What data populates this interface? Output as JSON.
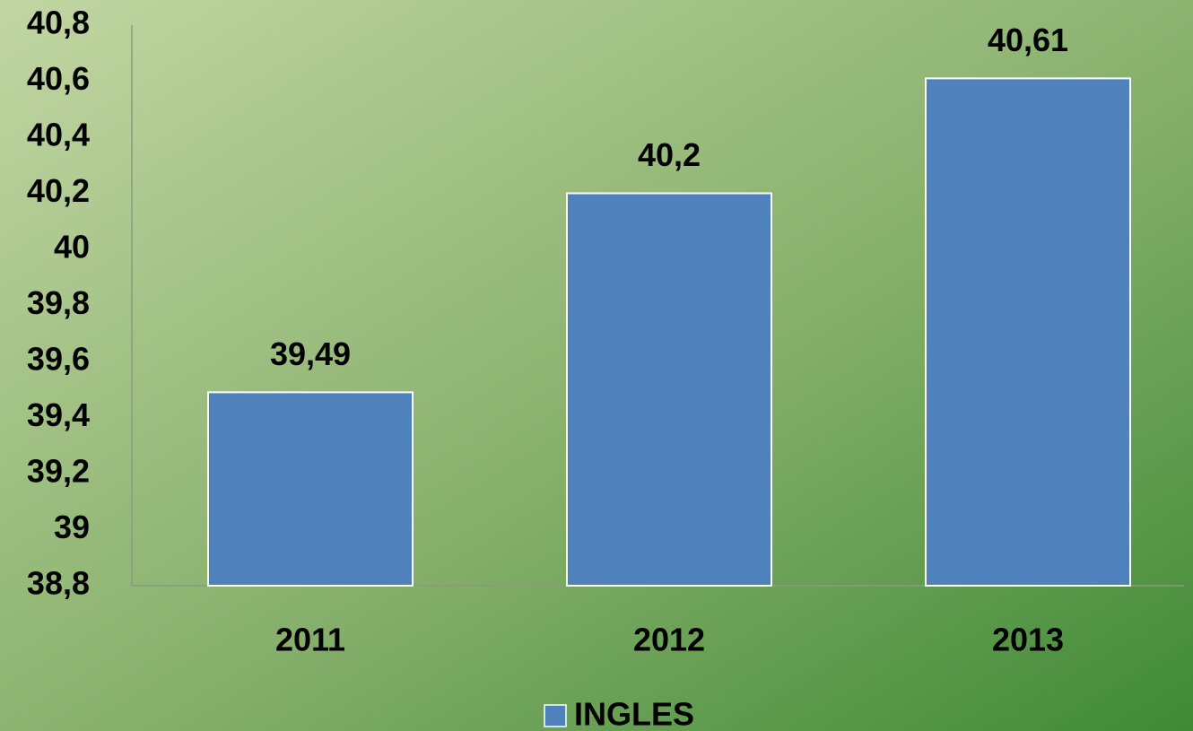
{
  "chart_data": {
    "type": "bar",
    "categories": [
      "2011",
      "2012",
      "2013"
    ],
    "series": [
      {
        "name": "INGLES",
        "color": "#4f81bd",
        "values": [
          39.49,
          40.2,
          40.61
        ],
        "value_labels": [
          "39,49",
          "40,2",
          "40,61"
        ]
      }
    ],
    "ylim": [
      38.8,
      40.8
    ],
    "yticks": [
      {
        "value": 38.8,
        "label": "38,8"
      },
      39,
      {
        "value": 39.2,
        "label": "39,2"
      },
      {
        "value": 39.4,
        "label": "39,4"
      },
      {
        "value": 39.6,
        "label": "39,6"
      },
      {
        "value": 39.8,
        "label": "39,8"
      },
      40,
      {
        "value": 40.2,
        "label": "40,2"
      },
      {
        "value": 40.4,
        "label": "40,4"
      },
      {
        "value": 40.6,
        "label": "40,6"
      },
      {
        "value": 40.8,
        "label": "40,8"
      }
    ],
    "grid": false,
    "legend": "bottom"
  }
}
